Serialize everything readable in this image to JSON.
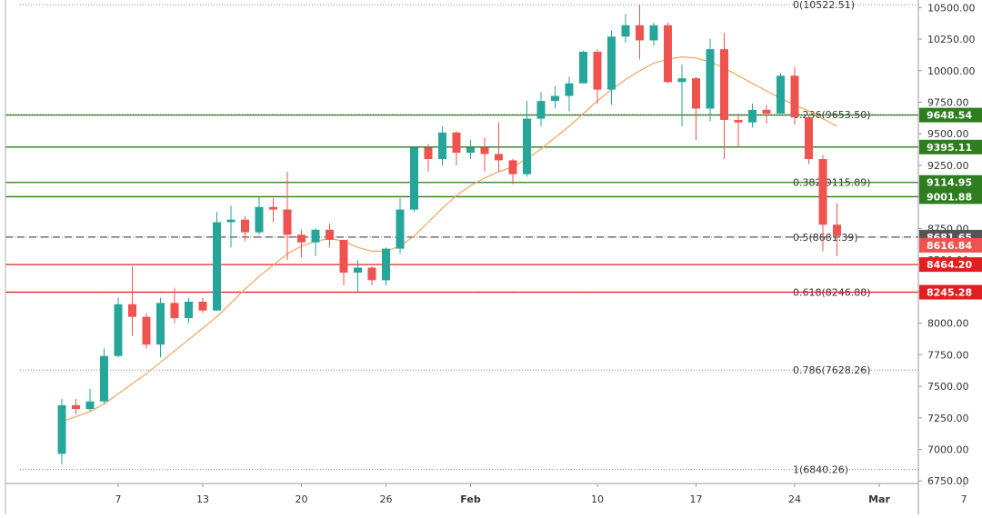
{
  "chart_data": {
    "type": "candlestick",
    "x_ticks": [
      "7",
      "13",
      "20",
      "26",
      "Feb",
      "10",
      "17",
      "24",
      "Mar",
      "7"
    ],
    "y_ticks": [
      "10500.00",
      "10250.00",
      "10000.00",
      "9750.00",
      "9500.00",
      "9250.00",
      "9000.00",
      "8750.00",
      "8500.00",
      "8250.00",
      "8000.00",
      "7750.00",
      "7500.00",
      "7250.00",
      "7000.00",
      "6750.00"
    ],
    "ylim": [
      6730,
      10560
    ],
    "candles": [
      {
        "date": "2020-01-03",
        "o": 6965,
        "h": 7400,
        "l": 6880,
        "c": 7350
      },
      {
        "date": "2020-01-04",
        "o": 7350,
        "h": 7400,
        "l": 7280,
        "c": 7320
      },
      {
        "date": "2020-01-05",
        "o": 7320,
        "h": 7480,
        "l": 7300,
        "c": 7380
      },
      {
        "date": "2020-01-06",
        "o": 7380,
        "h": 7800,
        "l": 7360,
        "c": 7740
      },
      {
        "date": "2020-01-07",
        "o": 7740,
        "h": 8200,
        "l": 7730,
        "c": 8150
      },
      {
        "date": "2020-01-08",
        "o": 8150,
        "h": 8450,
        "l": 7900,
        "c": 8050
      },
      {
        "date": "2020-01-09",
        "o": 8050,
        "h": 8080,
        "l": 7800,
        "c": 7830
      },
      {
        "date": "2020-01-10",
        "o": 7830,
        "h": 8200,
        "l": 7730,
        "c": 8160
      },
      {
        "date": "2020-01-11",
        "o": 8160,
        "h": 8280,
        "l": 8000,
        "c": 8040
      },
      {
        "date": "2020-01-12",
        "o": 8040,
        "h": 8200,
        "l": 8000,
        "c": 8170
      },
      {
        "date": "2020-01-13",
        "o": 8170,
        "h": 8200,
        "l": 8080,
        "c": 8100
      },
      {
        "date": "2020-01-14",
        "o": 8100,
        "h": 8880,
        "l": 8100,
        "c": 8800
      },
      {
        "date": "2020-01-15",
        "o": 8800,
        "h": 8930,
        "l": 8600,
        "c": 8820
      },
      {
        "date": "2020-01-16",
        "o": 8820,
        "h": 8850,
        "l": 8650,
        "c": 8720
      },
      {
        "date": "2020-01-17",
        "o": 8720,
        "h": 9000,
        "l": 8700,
        "c": 8920
      },
      {
        "date": "2020-01-18",
        "o": 8920,
        "h": 8990,
        "l": 8800,
        "c": 8900
      },
      {
        "date": "2020-01-19",
        "o": 8900,
        "h": 9200,
        "l": 8500,
        "c": 8700
      },
      {
        "date": "2020-01-20",
        "o": 8700,
        "h": 8740,
        "l": 8520,
        "c": 8640
      },
      {
        "date": "2020-01-21",
        "o": 8640,
        "h": 8750,
        "l": 8530,
        "c": 8740
      },
      {
        "date": "2020-01-22",
        "o": 8740,
        "h": 8790,
        "l": 8600,
        "c": 8660
      },
      {
        "date": "2020-01-23",
        "o": 8660,
        "h": 8660,
        "l": 8300,
        "c": 8400
      },
      {
        "date": "2020-01-24",
        "o": 8400,
        "h": 8500,
        "l": 8250,
        "c": 8440
      },
      {
        "date": "2020-01-25",
        "o": 8440,
        "h": 8450,
        "l": 8300,
        "c": 8340
      },
      {
        "date": "2020-01-26",
        "o": 8340,
        "h": 8600,
        "l": 8300,
        "c": 8590
      },
      {
        "date": "2020-01-27",
        "o": 8590,
        "h": 8990,
        "l": 8550,
        "c": 8900
      },
      {
        "date": "2020-01-28",
        "o": 8900,
        "h": 9400,
        "l": 8880,
        "c": 9390
      },
      {
        "date": "2020-01-29",
        "o": 9390,
        "h": 9420,
        "l": 9200,
        "c": 9300
      },
      {
        "date": "2020-01-30",
        "o": 9300,
        "h": 9560,
        "l": 9250,
        "c": 9510
      },
      {
        "date": "2020-01-31",
        "o": 9510,
        "h": 9520,
        "l": 9250,
        "c": 9350
      },
      {
        "date": "2020-02-01",
        "o": 9350,
        "h": 9450,
        "l": 9300,
        "c": 9390
      },
      {
        "date": "2020-02-02",
        "o": 9390,
        "h": 9470,
        "l": 9200,
        "c": 9340
      },
      {
        "date": "2020-02-03",
        "o": 9340,
        "h": 9590,
        "l": 9200,
        "c": 9290
      },
      {
        "date": "2020-02-04",
        "o": 9290,
        "h": 9300,
        "l": 9100,
        "c": 9180
      },
      {
        "date": "2020-02-05",
        "o": 9180,
        "h": 9760,
        "l": 9160,
        "c": 9620
      },
      {
        "date": "2020-02-06",
        "o": 9620,
        "h": 9830,
        "l": 9560,
        "c": 9760
      },
      {
        "date": "2020-02-07",
        "o": 9760,
        "h": 9880,
        "l": 9700,
        "c": 9800
      },
      {
        "date": "2020-02-08",
        "o": 9800,
        "h": 9950,
        "l": 9680,
        "c": 9900
      },
      {
        "date": "2020-02-09",
        "o": 9900,
        "h": 10160,
        "l": 9900,
        "c": 10150
      },
      {
        "date": "2020-02-10",
        "o": 10150,
        "h": 10170,
        "l": 9740,
        "c": 9850
      },
      {
        "date": "2020-02-11",
        "o": 9850,
        "h": 10320,
        "l": 9730,
        "c": 10270
      },
      {
        "date": "2020-02-12",
        "o": 10270,
        "h": 10450,
        "l": 10220,
        "c": 10360
      },
      {
        "date": "2020-02-13",
        "o": 10360,
        "h": 10522,
        "l": 10090,
        "c": 10240
      },
      {
        "date": "2020-02-14",
        "o": 10240,
        "h": 10380,
        "l": 10200,
        "c": 10360
      },
      {
        "date": "2020-02-15",
        "o": 10360,
        "h": 10380,
        "l": 9900,
        "c": 9910
      },
      {
        "date": "2020-02-16",
        "o": 9910,
        "h": 10050,
        "l": 9560,
        "c": 9940
      },
      {
        "date": "2020-02-17",
        "o": 9940,
        "h": 9950,
        "l": 9450,
        "c": 9700
      },
      {
        "date": "2020-02-18",
        "o": 9700,
        "h": 10250,
        "l": 9600,
        "c": 10170
      },
      {
        "date": "2020-02-19",
        "o": 10170,
        "h": 10300,
        "l": 9300,
        "c": 9610
      },
      {
        "date": "2020-02-20",
        "o": 9610,
        "h": 9660,
        "l": 9400,
        "c": 9590
      },
      {
        "date": "2020-02-21",
        "o": 9590,
        "h": 9740,
        "l": 9550,
        "c": 9690
      },
      {
        "date": "2020-02-22",
        "o": 9690,
        "h": 9730,
        "l": 9580,
        "c": 9660
      },
      {
        "date": "2020-02-23",
        "o": 9660,
        "h": 9980,
        "l": 9660,
        "c": 9960
      },
      {
        "date": "2020-02-24",
        "o": 9960,
        "h": 10030,
        "l": 9570,
        "c": 9630
      },
      {
        "date": "2020-02-25",
        "o": 9630,
        "h": 9650,
        "l": 9260,
        "c": 9300
      },
      {
        "date": "2020-02-26",
        "o": 9300,
        "h": 9330,
        "l": 8570,
        "c": 8780
      },
      {
        "date": "2020-02-27",
        "o": 8780,
        "h": 8950,
        "l": 8530,
        "c": 8690
      }
    ],
    "series": [
      {
        "name": "moving average",
        "color": "#f2a560",
        "values": [
          7220,
          7260,
          7300,
          7360,
          7440,
          7520,
          7600,
          7690,
          7780,
          7870,
          7960,
          8050,
          8160,
          8270,
          8370,
          8460,
          8550,
          8610,
          8650,
          8670,
          8650,
          8600,
          8570,
          8570,
          8610,
          8690,
          8800,
          8910,
          9010,
          9090,
          9150,
          9200,
          9240,
          9300,
          9380,
          9470,
          9560,
          9660,
          9760,
          9850,
          9930,
          10000,
          10060,
          10090,
          10110,
          10100,
          10070,
          10020,
          9960,
          9900,
          9840,
          9780,
          9730,
          9680,
          9620,
          9560
        ]
      }
    ],
    "levels": [
      {
        "price": 9648.54,
        "label": "9648.54",
        "color": "#2e7d1e",
        "style": "solid"
      },
      {
        "price": 9395.11,
        "label": "9395.11",
        "color": "#2e7d1e",
        "style": "solid"
      },
      {
        "price": 9114.95,
        "label": "9114.95",
        "color": "#2e7d1e",
        "style": "solid"
      },
      {
        "price": 9001.88,
        "label": "9001.88",
        "color": "#2e7d1e",
        "style": "solid"
      },
      {
        "price": 8681.65,
        "label": "8681.65",
        "color": "#555555",
        "style": "dashed"
      },
      {
        "price": 8464.2,
        "label": "8464.20",
        "color": "#e02020",
        "style": "solid"
      },
      {
        "price": 8245.28,
        "label": "8245.28",
        "color": "#e02020",
        "style": "solid"
      }
    ],
    "price_tags": [
      {
        "price": 8616.84,
        "label": "8616.84",
        "color": "#ef5350"
      }
    ],
    "fibonacci": [
      {
        "price": 10522.51,
        "label": "0(10522.51)"
      },
      {
        "price": 9653.5,
        "label": "0.236(9653.50)"
      },
      {
        "price": 9115.89,
        "label": "0.382(9115.89)"
      },
      {
        "price": 8681.39,
        "label": "0.5(8681.39)"
      },
      {
        "price": 8246.88,
        "label": "0.618(8246.88)"
      },
      {
        "price": 7628.26,
        "label": "0.786(7628.26)"
      },
      {
        "price": 6840.26,
        "label": "1(6840.26)"
      }
    ],
    "colors": {
      "up": "#26a69a",
      "down": "#ef5350",
      "grid_dot": "#8a8a8a",
      "axis_text": "#333333"
    }
  }
}
